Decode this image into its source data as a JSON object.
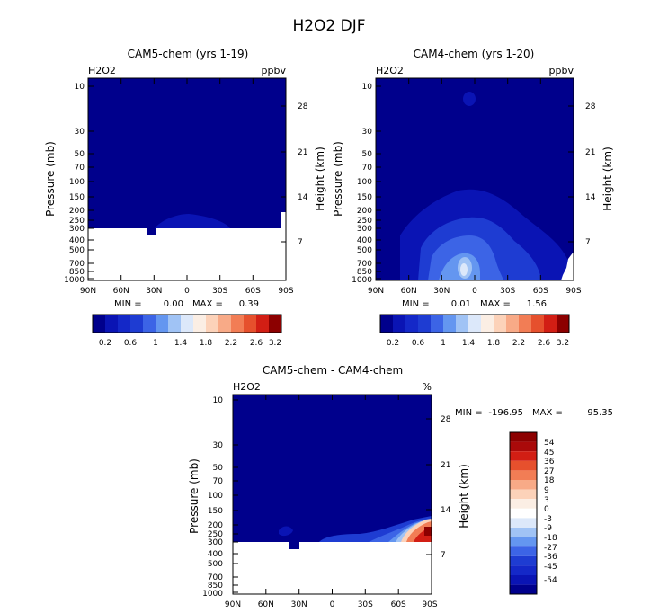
{
  "figure_title": "H2O2 DJF",
  "colors": {
    "navy": "#00008c",
    "c1": "#0a14b4",
    "c2": "#1e3cd2",
    "c3": "#3c64e6",
    "c4": "#6496f0",
    "c5": "#a0c3f5",
    "c6": "#dce8fa",
    "w": "#fbeee4",
    "r1": "#fcd2b9",
    "r2": "#f8aa87",
    "r3": "#f27d55",
    "r4": "#e6502d",
    "r5": "#d21e14",
    "r6": "#aa0a0a",
    "r7": "#8c0000",
    "missing": "#ffffff"
  },
  "chart_data": [
    {
      "type": "heatmap",
      "title": "CAM5-chem (yrs 1-19)",
      "left_label": "H2O2",
      "right_label": "ppbv",
      "xlabel": "",
      "ylabel": "Pressure (mb)",
      "ylabel_right": "Height (km)",
      "xticks": [
        "90N",
        "60N",
        "30N",
        "0",
        "30S",
        "60S",
        "90S"
      ],
      "yticks": [
        "10",
        "30",
        "50",
        "70",
        "100",
        "150",
        "200",
        "250",
        "300",
        "400",
        "500",
        "700",
        "850",
        "1000"
      ],
      "yticks_right": [
        "28",
        "21",
        "14",
        "7"
      ],
      "stats": {
        "min_label": "MIN =",
        "min": "0.00",
        "max_label": "MAX =",
        "max": "0.39"
      },
      "colorbar_labels": [
        "0.2",
        "0.6",
        "1",
        "1.4",
        "1.8",
        "2.2",
        "2.6",
        "3.2"
      ]
    },
    {
      "type": "heatmap",
      "title": "CAM4-chem (yrs 1-20)",
      "left_label": "H2O2",
      "right_label": "ppbv",
      "xlabel": "",
      "ylabel": "Pressure (mb)",
      "ylabel_right": "Height (km)",
      "xticks": [
        "90N",
        "60N",
        "30N",
        "0",
        "30S",
        "60S",
        "90S"
      ],
      "yticks": [
        "10",
        "30",
        "50",
        "70",
        "100",
        "150",
        "200",
        "250",
        "300",
        "400",
        "500",
        "700",
        "850",
        "1000"
      ],
      "yticks_right": [
        "28",
        "21",
        "14",
        "7"
      ],
      "stats": {
        "min_label": "MIN =",
        "min": "0.01",
        "max_label": "MAX =",
        "max": "1.56"
      },
      "colorbar_labels": [
        "0.2",
        "0.6",
        "1",
        "1.4",
        "1.8",
        "2.2",
        "2.6",
        "3.2"
      ]
    },
    {
      "type": "heatmap",
      "title": "CAM5-chem - CAM4-chem",
      "left_label": "H2O2",
      "right_label": "%",
      "xlabel": "",
      "ylabel": "Pressure (mb)",
      "ylabel_right": "Height (km)",
      "xticks": [
        "90N",
        "60N",
        "30N",
        "0",
        "30S",
        "60S",
        "90S"
      ],
      "yticks": [
        "10",
        "30",
        "50",
        "70",
        "100",
        "150",
        "200",
        "250",
        "300",
        "400",
        "500",
        "700",
        "850",
        "1000"
      ],
      "yticks_right": [
        "28",
        "21",
        "14",
        "7"
      ],
      "stats": {
        "min_label": "MIN =",
        "min": "-196.95",
        "max_label": "MAX =",
        "max": "95.35"
      },
      "colorbar_labels": [
        "54",
        "45",
        "36",
        "27",
        "18",
        "9",
        "3",
        "0",
        "-3",
        "-9",
        "-18",
        "-27",
        "-36",
        "-45",
        "-54"
      ]
    }
  ]
}
